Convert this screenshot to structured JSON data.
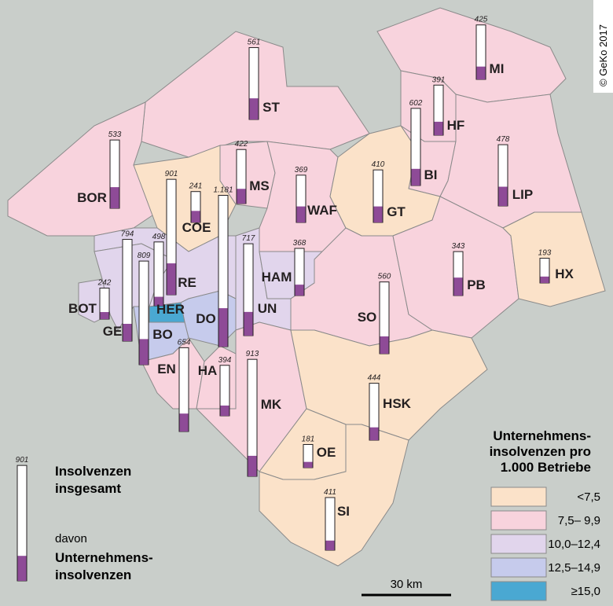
{
  "map": {
    "copyright": "© GeKo 2017",
    "scale_label": "30 km",
    "districts": [
      {
        "code": "ST",
        "total": 561,
        "corporate": 165,
        "class": 1
      },
      {
        "code": "MI",
        "total": 425,
        "corporate": 100,
        "class": 1
      },
      {
        "code": "HF",
        "total": 391,
        "corporate": 105,
        "class": 1
      },
      {
        "code": "BI",
        "total": 602,
        "corporate": 130,
        "class": 1
      },
      {
        "code": "LIP",
        "total": 478,
        "corporate": 150,
        "class": 1
      },
      {
        "code": "BOR",
        "total": 533,
        "corporate": 165,
        "class": 1
      },
      {
        "code": "MS",
        "total": 422,
        "corporate": 115,
        "class": 1
      },
      {
        "code": "WAF",
        "total": 369,
        "corporate": 125,
        "class": 1
      },
      {
        "code": "GT",
        "total": 410,
        "corporate": 125,
        "class": 0
      },
      {
        "code": "COE",
        "total": 241,
        "corporate": 90,
        "class": 0
      },
      {
        "code": "RE",
        "total": 901,
        "corporate": 245,
        "class": 2
      },
      {
        "code": "DO",
        "total": 1181,
        "total_label": "1.181",
        "corporate": 300,
        "class": 3
      },
      {
        "code": "UN",
        "total": 717,
        "corporate": 185,
        "class": 2
      },
      {
        "code": "HAM",
        "total": 368,
        "corporate": 85,
        "class": 2
      },
      {
        "code": "HER",
        "total": 498,
        "corporate": 70,
        "class": 4
      },
      {
        "code": "GE",
        "total": 794,
        "corporate": 135,
        "class": 2
      },
      {
        "code": "BO",
        "total": 809,
        "corporate": 200,
        "class": 3
      },
      {
        "code": "BOT",
        "total": 242,
        "corporate": 55,
        "class": 2
      },
      {
        "code": "SO",
        "total": 560,
        "corporate": 135,
        "class": 1
      },
      {
        "code": "PB",
        "total": 343,
        "corporate": 140,
        "class": 1
      },
      {
        "code": "HX",
        "total": 193,
        "corporate": 50,
        "class": 0
      },
      {
        "code": "EN",
        "total": 654,
        "corporate": 140,
        "class": 1
      },
      {
        "code": "HA",
        "total": 394,
        "corporate": 80,
        "class": 1
      },
      {
        "code": "MK",
        "total": 913,
        "corporate": 160,
        "class": 1
      },
      {
        "code": "HSK",
        "total": 444,
        "corporate": 100,
        "class": 0
      },
      {
        "code": "OE",
        "total": 181,
        "corporate": 45,
        "class": 0
      },
      {
        "code": "SI",
        "total": 411,
        "corporate": 75,
        "class": 0
      }
    ],
    "legend": {
      "sample": {
        "total": 901,
        "corporate": 195,
        "total_text": "Insolvenzen insgesamt",
        "of_which": "davon",
        "corporate_text": "Unternehmens-insolvenzen"
      },
      "title": [
        "Unternehmens-",
        "insolvenzen pro",
        "1.000 Betriebe"
      ],
      "classes": [
        {
          "label": "<7,5",
          "color": "#fbe2c9"
        },
        {
          "label": "7,5–  9,9",
          "color": "#f8d3dd"
        },
        {
          "label": "10,0–12,4",
          "color": "#e1d5ec"
        },
        {
          "label": "12,5–14,9",
          "color": "#c6cbec"
        },
        {
          "label": "≥15,0",
          "color": "#4aa8d2"
        }
      ]
    }
  }
}
